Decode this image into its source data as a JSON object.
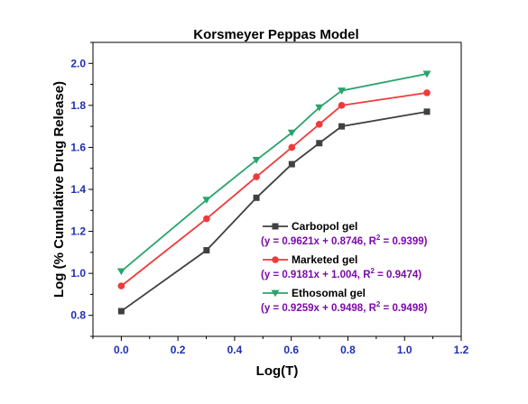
{
  "chart_data": {
    "type": "line",
    "title": "Korsmeyer Peppas Model",
    "xlabel": "Log(T)",
    "ylabel": "Log (% Cumulative Drug Release)",
    "xlim": [
      -0.1,
      1.2
    ],
    "ylim": [
      0.7,
      2.1
    ],
    "xticks": [
      "0.0",
      "0.2",
      "0.4",
      "0.6",
      "0.8",
      "1.0",
      "1.2"
    ],
    "yticks": [
      "0.8",
      "1.0",
      "1.2",
      "1.4",
      "1.6",
      "1.8",
      "2.0"
    ],
    "x": [
      0.0,
      0.301,
      0.477,
      0.602,
      0.699,
      0.778,
      1.079
    ],
    "series": [
      {
        "name": "Carbopol gel",
        "equation": "y = 0.9621x + 0.8746, R",
        "r2": "= 0.9399)",
        "color": "#404040",
        "marker": "square",
        "values": [
          0.82,
          1.11,
          1.36,
          1.52,
          1.62,
          1.7,
          1.77
        ]
      },
      {
        "name": "Marketed gel",
        "equation": "y = 0.9181x + 1.004, R",
        "r2": "= 0.9474)",
        "color": "#f03a3a",
        "marker": "circle",
        "values": [
          0.94,
          1.26,
          1.46,
          1.6,
          1.71,
          1.8,
          1.86
        ]
      },
      {
        "name": "Ethosomal gel",
        "equation": "y = 0.9259x + 0.9498, R",
        "r2": "= 0.9498)",
        "color": "#2aa36b",
        "marker": "triangle-down",
        "values": [
          1.01,
          1.35,
          1.54,
          1.67,
          1.79,
          1.87,
          1.95
        ]
      }
    ],
    "legend_position": "bottom-right",
    "grid": false
  }
}
